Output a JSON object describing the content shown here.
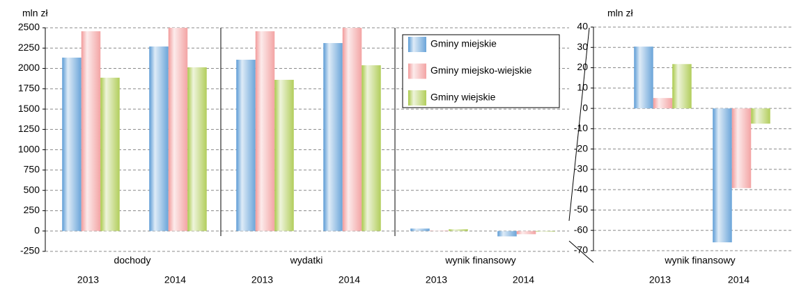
{
  "chart_data": [
    {
      "type": "bar",
      "y_label": "mln zł",
      "groups": [
        "dochody",
        "wydatki",
        "wynik finansowy"
      ],
      "categories": [
        "2013",
        "2014",
        "2013",
        "2014",
        "2013",
        "2014"
      ],
      "series": [
        {
          "name": "Gminy miejskie",
          "color": "#5b9bd5",
          "values": [
            2133,
            2270,
            2107,
            2312,
            30.4,
            -65.9
          ]
        },
        {
          "name": "Gminy miejsko-wiejskie",
          "color": "#f29a9a",
          "values": [
            2457,
            2500,
            2457,
            2500,
            5.1,
            -39.2
          ]
        },
        {
          "name": "Gminy wiejskie",
          "color": "#a9c94a",
          "values": [
            1886,
            2014,
            1860,
            2039,
            21.8,
            -7.5
          ]
        }
      ],
      "ylim": [
        -250,
        2500
      ],
      "yticks": [
        -250,
        0,
        250,
        500,
        750,
        1000,
        1250,
        1500,
        1750,
        2000,
        2250,
        2500
      ],
      "grid": true,
      "legend": "top-right"
    },
    {
      "type": "bar",
      "y_label": "mln zł",
      "groups": [
        "wynik finansowy"
      ],
      "categories": [
        "2013",
        "2014"
      ],
      "series": [
        {
          "color": "#5b9bd5",
          "values": [
            30.4,
            -65.9
          ]
        },
        {
          "color": "#f29a9a",
          "values": [
            5.1,
            -39.2
          ]
        },
        {
          "color": "#a9c94a",
          "values": [
            21.8,
            -7.5
          ]
        }
      ],
      "ylim": [
        -70,
        40
      ],
      "yticks": [
        -70,
        -60,
        -50,
        -40,
        -30,
        -20,
        -10,
        0,
        10,
        20,
        30,
        40
      ],
      "grid": true
    }
  ]
}
